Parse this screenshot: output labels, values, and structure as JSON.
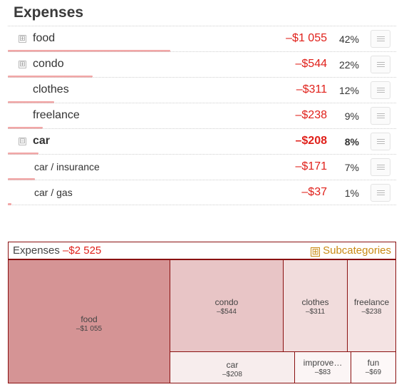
{
  "title": "Expenses",
  "rows": [
    {
      "name": "food",
      "amount": "–$1 055",
      "pct": "42%",
      "expander": "⊞",
      "bar": 0.42
    },
    {
      "name": "condo",
      "amount": "–$544",
      "pct": "22%",
      "expander": "⊞",
      "bar": 0.22
    },
    {
      "name": "clothes",
      "amount": "–$311",
      "pct": "12%",
      "expander": "",
      "bar": 0.12
    },
    {
      "name": "freelance",
      "amount": "–$238",
      "pct": "9%",
      "expander": "",
      "bar": 0.09
    },
    {
      "name": "car",
      "amount": "–$208",
      "pct": "8%",
      "expander": "⊟",
      "bar": 0.08
    },
    {
      "name": "car / insurance",
      "amount": "–$171",
      "pct": "7%",
      "expander": "",
      "bar": 0.07
    },
    {
      "name": "car / gas",
      "amount": "–$37",
      "pct": "1%",
      "expander": "",
      "bar": 0.01
    }
  ],
  "treemap": {
    "label": "Expenses",
    "total": "–$2 525",
    "subcategories_label": "Subcategories",
    "subcategories_icon": "⊞",
    "tiles": [
      {
        "name": "food",
        "value": "–$1 055"
      },
      {
        "name": "condo",
        "value": "–$544"
      },
      {
        "name": "clothes",
        "value": "–$311"
      },
      {
        "name": "freelance",
        "value": "–$238"
      },
      {
        "name": "car",
        "value": "–$208"
      },
      {
        "name": "improve…",
        "value": "–$83"
      },
      {
        "name": "fun",
        "value": "–$69"
      }
    ]
  },
  "colors": {
    "negative": "#e0201a",
    "bar": "#f2a7a7",
    "border": "#8a1010",
    "accent": "#c98a14"
  }
}
